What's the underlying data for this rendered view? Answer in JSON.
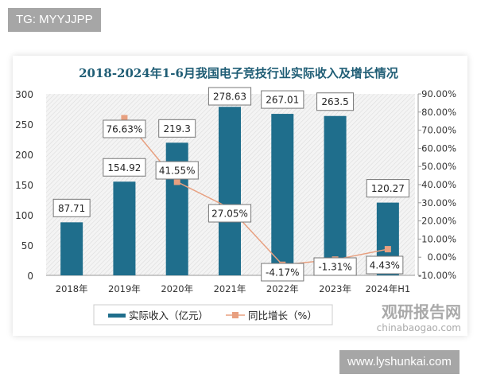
{
  "overlay": {
    "top_left_label": "TG: MYYJJPP",
    "bottom_right_label": "www.lyshunkai.com"
  },
  "watermark": {
    "brand": "观研报告网",
    "url": "chinabaogao.com"
  },
  "colors": {
    "bar": "#1f6e8c",
    "line": "#e8a080",
    "title": "#1f5d75"
  },
  "chart_data": {
    "type": "bar",
    "title": "2018-2024年1-6月我国电子竞技行业实际收入及增长情况",
    "categories": [
      "2018年",
      "2019年",
      "2020年",
      "2021年",
      "2022年",
      "2023年",
      "2024年H1"
    ],
    "series": [
      {
        "name": "实际收入（亿元）",
        "type": "bar",
        "axis": "left",
        "values": [
          87.71,
          154.92,
          219.3,
          278.63,
          267.01,
          263.5,
          120.27
        ],
        "labels": [
          "87.71",
          "154.92",
          "219.3",
          "278.63",
          "267.01",
          "263.5",
          "120.27"
        ]
      },
      {
        "name": "同比增长（%）",
        "type": "line",
        "axis": "right",
        "values": [
          null,
          76.63,
          41.55,
          27.05,
          -4.17,
          -1.31,
          4.43
        ],
        "labels": [
          "",
          "76.63%",
          "41.55%",
          "27.05%",
          "-4.17%",
          "-1.31%",
          "4.43%"
        ]
      }
    ],
    "left_axis": {
      "ylim": [
        0,
        300
      ],
      "ticks": [
        "0",
        "50",
        "100",
        "150",
        "200",
        "250",
        "300"
      ]
    },
    "right_axis": {
      "ylim": [
        -10,
        90
      ],
      "ticks": [
        "-10.00%",
        "0.00%",
        "10.00%",
        "20.00%",
        "30.00%",
        "40.00%",
        "50.00%",
        "60.00%",
        "70.00%",
        "80.00%",
        "90.00%"
      ]
    },
    "legend_placement": "bottom",
    "grid": false
  }
}
